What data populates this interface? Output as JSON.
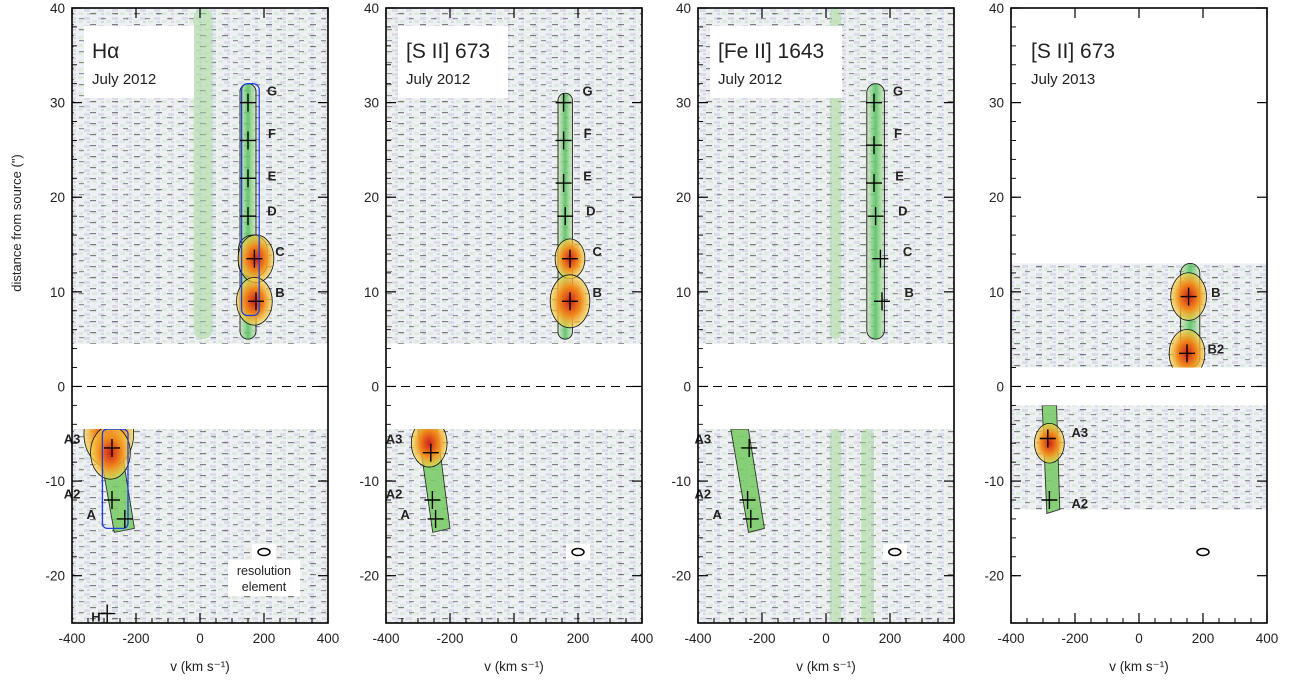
{
  "figure": {
    "ylabel": "distance from source (\")"
  },
  "chart_data": [
    {
      "type": "heatmap",
      "line": "Hα",
      "date": "July 2012",
      "xlabel": "v (km s⁻¹)",
      "xlim": [
        -400,
        400
      ],
      "ylim": [
        -25,
        40
      ],
      "xticks": [
        -400,
        -200,
        0,
        200,
        400
      ],
      "yticks": [
        -20,
        -10,
        0,
        10,
        20,
        30,
        40
      ],
      "gap": [
        -4.5,
        4.5
      ],
      "emission": [
        {
          "kind": "jet",
          "x": 150,
          "w": 50,
          "y0": 5,
          "y1": 32
        },
        {
          "kind": "bow",
          "x": 165,
          "w": 90,
          "y0": 11.5,
          "y1": 16
        },
        {
          "kind": "column",
          "x": 10,
          "w": 60,
          "y0": 5,
          "y1": 40
        },
        {
          "kind": "counterjet",
          "x0": -290,
          "x1": -240,
          "w": 70,
          "y0": -4.5,
          "y1": -15
        }
      ],
      "knots": [
        {
          "label": "G",
          "v": 150,
          "d": 30,
          "lv": 225,
          "ld": 31.3
        },
        {
          "label": "F",
          "v": 150,
          "d": 26,
          "lv": 225,
          "ld": 26.8
        },
        {
          "label": "E",
          "v": 150,
          "d": 22,
          "lv": 225,
          "ld": 22.3
        },
        {
          "label": "D",
          "v": 150,
          "d": 18,
          "lv": 225,
          "ld": 18.6
        },
        {
          "label": "C",
          "v": 170,
          "d": 13.5,
          "lv": 250,
          "ld": 14.3
        },
        {
          "label": "B",
          "v": 175,
          "d": 9,
          "lv": 250,
          "ld": 10.0
        },
        {
          "label": "A3",
          "v": -275,
          "d": -6.5,
          "lv": -400,
          "ld": -5.5
        },
        {
          "label": "A2",
          "v": -275,
          "d": -12,
          "lv": -400,
          "ld": -11.3
        },
        {
          "label": "A",
          "v": -235,
          "d": -14,
          "lv": -340,
          "ld": -13.5
        },
        {
          "label": "H",
          "v": -290,
          "d": -24,
          "lv": -325,
          "ld": -24.3
        }
      ],
      "hot": [
        {
          "v": -285,
          "d": -5,
          "r": 2.5
        },
        {
          "v": -280,
          "d": -7,
          "r": 2
        },
        {
          "v": 175,
          "d": 13.5,
          "r": 1.8
        },
        {
          "v": 170,
          "d": 9,
          "r": 1.8
        }
      ],
      "blue_contour": true,
      "resolution": {
        "v": 200,
        "d": -17.5,
        "label_line1": "resolution",
        "label_line2": "element"
      }
    },
    {
      "type": "heatmap",
      "line": "[S II] 673",
      "date": "July 2012",
      "xlabel": "v (km s⁻¹)",
      "xlim": [
        -400,
        400
      ],
      "ylim": [
        -25,
        40
      ],
      "xticks": [
        -400,
        -200,
        0,
        200,
        400
      ],
      "yticks": [
        -20,
        -10,
        0,
        10,
        20,
        30,
        40
      ],
      "gap": [
        -4.5,
        4.5
      ],
      "emission": [
        {
          "kind": "jet",
          "x": 160,
          "w": 45,
          "y0": 5,
          "y1": 31
        },
        {
          "kind": "counterjet",
          "x0": -270,
          "x1": -230,
          "w": 60,
          "y0": -4.5,
          "y1": -15
        }
      ],
      "knots": [
        {
          "label": "G",
          "v": 155,
          "d": 30,
          "lv": 230,
          "ld": 31.3
        },
        {
          "label": "F",
          "v": 155,
          "d": 26,
          "lv": 230,
          "ld": 26.8
        },
        {
          "label": "E",
          "v": 155,
          "d": 21.5,
          "lv": 230,
          "ld": 22.3
        },
        {
          "label": "D",
          "v": 160,
          "d": 18,
          "lv": 240,
          "ld": 18.6
        },
        {
          "label": "C",
          "v": 175,
          "d": 13.5,
          "lv": 260,
          "ld": 14.3
        },
        {
          "label": "B",
          "v": 175,
          "d": 9,
          "lv": 260,
          "ld": 10.0
        },
        {
          "label": "A3",
          "v": -260,
          "d": -7,
          "lv": -375,
          "ld": -5.5
        },
        {
          "label": "A2",
          "v": -255,
          "d": -12,
          "lv": -375,
          "ld": -11.3
        },
        {
          "label": "A",
          "v": -245,
          "d": -14,
          "lv": -340,
          "ld": -13.5
        }
      ],
      "hot": [
        {
          "v": 175,
          "d": 13.5,
          "r": 1.5
        },
        {
          "v": 175,
          "d": 9,
          "r": 2
        },
        {
          "v": -265,
          "d": -6,
          "r": 1.8
        }
      ],
      "blue_contour": false,
      "resolution": {
        "v": 200,
        "d": -17.5
      }
    },
    {
      "type": "heatmap",
      "line": "[Fe II] 1643",
      "date": "July 2012",
      "xlabel": "v (km s⁻¹)",
      "xlim": [
        -400,
        400
      ],
      "ylim": [
        -25,
        40
      ],
      "xticks": [
        -400,
        -200,
        0,
        200,
        400
      ],
      "yticks": [
        -20,
        -10,
        0,
        10,
        20,
        30,
        40
      ],
      "gap": [
        -4.5,
        4.5
      ],
      "emission": [
        {
          "kind": "jet",
          "x": 155,
          "w": 55,
          "y0": 5,
          "y1": 32
        },
        {
          "kind": "column",
          "x": 30,
          "w": 35,
          "y0": 5,
          "y1": 40
        },
        {
          "kind": "column",
          "x": 30,
          "w": 35,
          "y0": -25,
          "y1": -4.5
        },
        {
          "kind": "column",
          "x": 130,
          "w": 40,
          "y0": -25,
          "y1": -4.5
        },
        {
          "kind": "counterjet",
          "x0": -270,
          "x1": -220,
          "w": 55,
          "y0": -4.5,
          "y1": -15
        }
      ],
      "knots": [
        {
          "label": "G",
          "v": 150,
          "d": 30,
          "lv": 225,
          "ld": 31.3
        },
        {
          "label": "F",
          "v": 150,
          "d": 25.5,
          "lv": 225,
          "ld": 26.8
        },
        {
          "label": "E",
          "v": 150,
          "d": 21.5,
          "lv": 230,
          "ld": 22.3
        },
        {
          "label": "D",
          "v": 155,
          "d": 18,
          "lv": 240,
          "ld": 18.6
        },
        {
          "label": "C",
          "v": 170,
          "d": 13.5,
          "lv": 255,
          "ld": 14.3
        },
        {
          "label": "B",
          "v": 175,
          "d": 9,
          "lv": 260,
          "ld": 10.0
        },
        {
          "label": "A3",
          "v": -240,
          "d": -6.5,
          "lv": -385,
          "ld": -5.5
        },
        {
          "label": "A2",
          "v": -245,
          "d": -12,
          "lv": -385,
          "ld": -11.3
        },
        {
          "label": "A",
          "v": -235,
          "d": -14,
          "lv": -340,
          "ld": -13.5
        }
      ],
      "hot": [],
      "blue_contour": false,
      "resolution": {
        "v": 215,
        "d": -17.5
      }
    },
    {
      "type": "heatmap",
      "line": "[S II] 673",
      "date": "July 2013",
      "xlabel": "v (km s⁻¹)",
      "xlim": [
        -400,
        400
      ],
      "ylim": [
        -25,
        40
      ],
      "xticks": [
        -400,
        -200,
        0,
        200,
        400
      ],
      "yticks": [
        -20,
        -10,
        0,
        10,
        20,
        30,
        40
      ],
      "gap": [
        -2,
        2
      ],
      "coverage": [
        [
          2,
          13
        ],
        [
          -13,
          -2
        ]
      ],
      "emission": [
        {
          "kind": "jet",
          "x": 160,
          "w": 60,
          "y0": 2,
          "y1": 13
        },
        {
          "kind": "counterjet",
          "x0": -280,
          "x1": -270,
          "w": 45,
          "y0": -2,
          "y1": -13
        }
      ],
      "knots": [
        {
          "label": "B",
          "v": 155,
          "d": 9.5,
          "lv": 240,
          "ld": 10.0
        },
        {
          "label": "B2",
          "v": 150,
          "d": 3.5,
          "lv": 240,
          "ld": 4.0
        },
        {
          "label": "A3",
          "v": -285,
          "d": -5.5,
          "lv": -185,
          "ld": -4.8
        },
        {
          "label": "A2",
          "v": -280,
          "d": -12,
          "lv": -185,
          "ld": -12.3
        }
      ],
      "hot": [
        {
          "v": 150,
          "d": 3.5,
          "r": 1.8
        },
        {
          "v": 155,
          "d": 9.5,
          "r": 1.8
        },
        {
          "v": -280,
          "d": -6,
          "r": 1.5
        }
      ],
      "blue_contour": false,
      "resolution": {
        "v": 200,
        "d": -17.5
      }
    }
  ]
}
